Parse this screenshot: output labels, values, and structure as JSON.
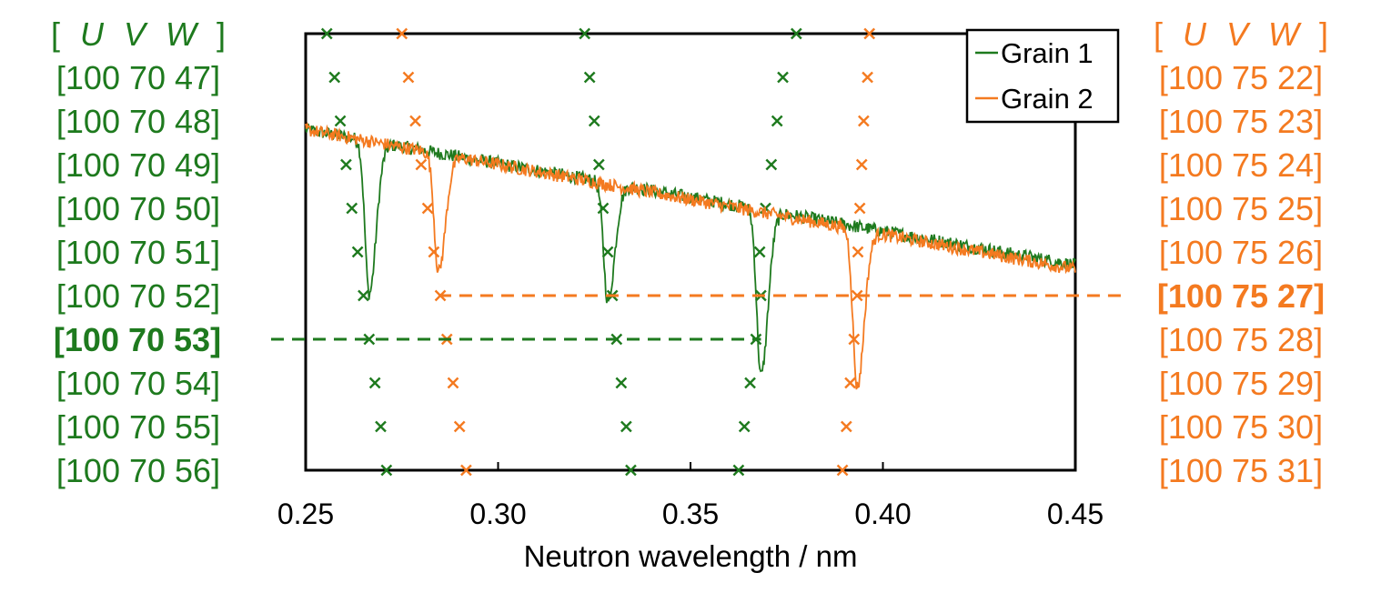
{
  "colors": {
    "grain1": "#1e7a1e",
    "grain2": "#f47a20",
    "axis": "#000000",
    "background": "#ffffff"
  },
  "chart_data": {
    "type": "line",
    "xlabel": "Neutron wavelength / nm",
    "ylabel": "",
    "xlim": [
      0.25,
      0.45
    ],
    "xticks": [
      "0.25",
      "0.30",
      "0.35",
      "0.40",
      "0.45"
    ],
    "grid": false,
    "legend": {
      "position": "top-right",
      "entries": [
        "Grain 1",
        "Grain 2"
      ]
    },
    "series": [
      {
        "name": "Grain 1",
        "color": "#1e7a1e",
        "baseline": [
          [
            0.25,
            0.78
          ],
          [
            0.45,
            0.47
          ]
        ],
        "dips": [
          {
            "x": 0.2665,
            "depth": 0.35
          },
          {
            "x": 0.3285,
            "depth": 0.27
          },
          {
            "x": 0.3683,
            "depth": 0.38
          }
        ]
      },
      {
        "name": "Grain 2",
        "color": "#f47a20",
        "baseline": [
          [
            0.25,
            0.78
          ],
          [
            0.45,
            0.46
          ]
        ],
        "dips": [
          {
            "x": 0.2845,
            "depth": 0.27
          },
          {
            "x": 0.3933,
            "depth": 0.36
          }
        ]
      }
    ],
    "row_count": 11,
    "left_labels": {
      "header": "[ U   V   W ]",
      "header_parts": [
        "[",
        "U",
        "V",
        "W",
        "]"
      ],
      "rows": [
        "[100 70 47]",
        "[100 70 48]",
        "[100 70 49]",
        "[100 70 50]",
        "[100 70 51]",
        "[100 70 52]",
        "[100 70 53]",
        "[100 70 54]",
        "[100 70 55]",
        "[100 70 56]"
      ],
      "highlight": "[100 70 53]"
    },
    "right_labels": {
      "header": "[ U   V   W ]",
      "header_parts": [
        "[",
        "U",
        "V",
        "W",
        "]"
      ],
      "rows": [
        "[100 75 22]",
        "[100 75 23]",
        "[100 75 24]",
        "[100 75 25]",
        "[100 75 26]",
        "[100 75 27]",
        "[100 75 28]",
        "[100 75 29]",
        "[100 75 30]",
        "[100 75 31]"
      ],
      "highlight": "[100 75 27]"
    },
    "markers": {
      "grain1": [
        [
          0.2555,
          0.2575,
          0.259,
          0.2605,
          0.262,
          0.2635,
          0.265,
          0.2665,
          0.268,
          0.2695,
          0.271
        ],
        [
          0.3225,
          0.3238,
          0.325,
          0.3262,
          0.3273,
          0.3285,
          0.3297,
          0.3308,
          0.332,
          0.3333,
          0.3345
        ],
        [
          0.3775,
          0.374,
          0.3725,
          0.371,
          0.3695,
          0.368,
          0.3683,
          0.367,
          0.3655,
          0.364,
          0.3625
        ]
      ],
      "grain2": [
        [
          0.275,
          0.2767,
          0.2785,
          0.28,
          0.2817,
          0.2833,
          0.285,
          0.2867,
          0.2883,
          0.29,
          0.2917
        ],
        [
          0.3965,
          0.396,
          0.395,
          0.3945,
          0.394,
          0.3935,
          0.3933,
          0.3925,
          0.3915,
          0.3905,
          0.3895
        ]
      ]
    },
    "callouts": [
      {
        "series": "Grain 1",
        "row": "[100 70 53]",
        "from_x": 0.2665,
        "to_x": 0.3683
      },
      {
        "series": "Grain 2",
        "row": "[100 75 27]",
        "from_x": 0.2845,
        "to_x": 0.3933
      }
    ]
  }
}
